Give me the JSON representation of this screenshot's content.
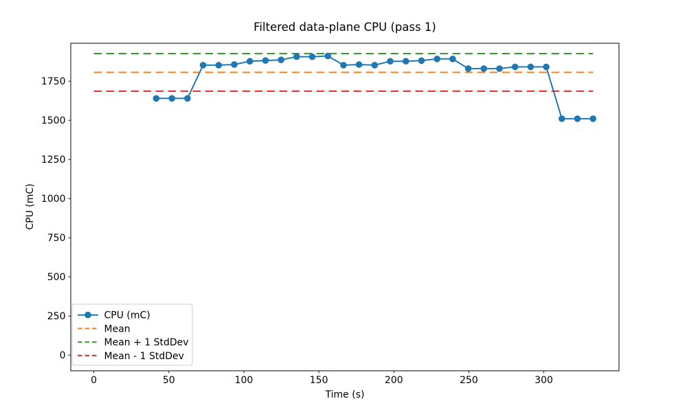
{
  "figure": {
    "title": "Filtered data-plane CPU (pass 1)",
    "xlabel": "Time (s)",
    "ylabel": "CPU (mC)"
  },
  "legend": {
    "position": "lower left",
    "items": [
      {
        "label": "CPU (mC)",
        "color": "#1f77b4",
        "style": "solid-marker"
      },
      {
        "label": "Mean",
        "color": "#ff7f0e",
        "style": "dashed"
      },
      {
        "label": "Mean + 1 StdDev",
        "color": "#2ca02c",
        "style": "dashed"
      },
      {
        "label": "Mean - 1 StdDev",
        "color": "#d62728",
        "style": "dashed"
      }
    ]
  },
  "chart_data": {
    "type": "line",
    "title": "Filtered data-plane CPU (pass 1)",
    "xlabel": "Time (s)",
    "ylabel": "CPU (mC)",
    "xlim": [
      -15.4,
      350.1
    ],
    "ylim": [
      -100,
      1992
    ],
    "xticks": [
      0,
      50,
      100,
      150,
      200,
      250,
      300
    ],
    "yticks": [
      0,
      250,
      500,
      750,
      1000,
      1250,
      1500,
      1750
    ],
    "grid": false,
    "legend_position": "lower left",
    "x": [
      41.6,
      52.0,
      62.4,
      72.8,
      83.2,
      93.6,
      104.0,
      114.4,
      124.8,
      135.2,
      145.6,
      156.0,
      166.4,
      176.8,
      187.2,
      197.6,
      208.0,
      218.4,
      228.8,
      239.2,
      249.6,
      260.0,
      270.4,
      280.8,
      291.2,
      301.6,
      312.0,
      322.4,
      332.8
    ],
    "series": [
      {
        "name": "CPU (mC)",
        "kind": "line-markers",
        "color": "#1f77b4",
        "values": [
          1640,
          1640,
          1640,
          1852,
          1852,
          1856,
          1877,
          1882,
          1886,
          1906,
          1906,
          1911,
          1852,
          1856,
          1852,
          1877,
          1877,
          1881,
          1892,
          1892,
          1830,
          1830,
          1830,
          1841,
          1841,
          1841,
          1510,
          1510,
          1510
        ]
      },
      {
        "name": "Mean",
        "kind": "hline",
        "color": "#ff7f0e",
        "value": 1806,
        "x_span": [
          0,
          332.8
        ]
      },
      {
        "name": "Mean + 1 StdDev",
        "kind": "hline",
        "color": "#2ca02c",
        "value": 1926,
        "x_span": [
          0,
          332.8
        ]
      },
      {
        "name": "Mean - 1 StdDev",
        "kind": "hline",
        "color": "#d62728",
        "value": 1686,
        "x_span": [
          0,
          332.8
        ]
      }
    ]
  }
}
